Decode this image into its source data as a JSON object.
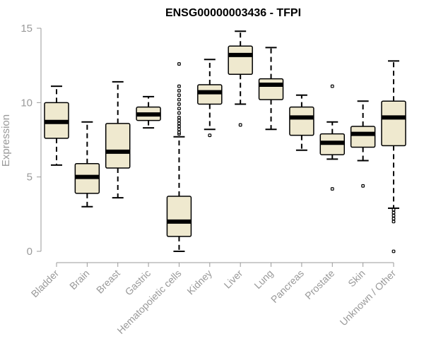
{
  "chart_data": {
    "type": "boxplot",
    "title": "ENSG00000003436 - TFPI",
    "xlabel": "",
    "ylabel": "Expression",
    "ylim": [
      0,
      15
    ],
    "yticks": [
      "0",
      "5",
      "10",
      "15"
    ],
    "grid": false,
    "colors": {
      "box_fill": "#efe9cf",
      "stroke": "#000000",
      "axis": "#999999"
    },
    "categories": [
      "Bladder",
      "Brain",
      "Breast",
      "Gastric",
      "Hematopoietic cells",
      "Kidney",
      "Liver",
      "Lung",
      "Pancreas",
      "Prostate",
      "Skin",
      "Unknown / Other"
    ],
    "boxes": [
      {
        "label": "Bladder",
        "whisker_low": 5.8,
        "q1": 7.6,
        "median": 8.7,
        "q3": 10.0,
        "whisker_high": 11.1,
        "outliers": []
      },
      {
        "label": "Brain",
        "whisker_low": 3.0,
        "q1": 3.9,
        "median": 5.0,
        "q3": 5.9,
        "whisker_high": 8.7,
        "outliers": []
      },
      {
        "label": "Breast",
        "whisker_low": 3.6,
        "q1": 5.6,
        "median": 6.7,
        "q3": 8.6,
        "whisker_high": 11.4,
        "outliers": []
      },
      {
        "label": "Gastric",
        "whisker_low": 8.3,
        "q1": 8.8,
        "median": 9.2,
        "q3": 9.7,
        "whisker_high": 10.4,
        "outliers": []
      },
      {
        "label": "Hematopoietic cells",
        "whisker_low": 0.0,
        "q1": 1.0,
        "median": 2.0,
        "q3": 3.7,
        "whisker_high": 7.7,
        "outliers": [
          7.9,
          8.0,
          8.2,
          8.4,
          8.6,
          8.8,
          9.0,
          9.3,
          9.6,
          9.9,
          10.2,
          10.5,
          10.8,
          11.1,
          12.6
        ]
      },
      {
        "label": "Kidney",
        "whisker_low": 8.2,
        "q1": 9.9,
        "median": 10.7,
        "q3": 11.2,
        "whisker_high": 12.9,
        "outliers": [
          7.8
        ]
      },
      {
        "label": "Liver",
        "whisker_low": 9.9,
        "q1": 11.9,
        "median": 13.2,
        "q3": 13.8,
        "whisker_high": 14.8,
        "outliers": [
          8.5
        ]
      },
      {
        "label": "Lung",
        "whisker_low": 8.2,
        "q1": 10.2,
        "median": 11.2,
        "q3": 11.6,
        "whisker_high": 13.7,
        "outliers": []
      },
      {
        "label": "Pancreas",
        "whisker_low": 6.8,
        "q1": 7.8,
        "median": 9.0,
        "q3": 9.7,
        "whisker_high": 10.5,
        "outliers": []
      },
      {
        "label": "Prostate",
        "whisker_low": 6.2,
        "q1": 6.5,
        "median": 7.3,
        "q3": 7.9,
        "whisker_high": 8.7,
        "outliers": [
          4.2,
          11.1
        ]
      },
      {
        "label": "Skin",
        "whisker_low": 6.1,
        "q1": 7.0,
        "median": 7.9,
        "q3": 8.4,
        "whisker_high": 10.1,
        "outliers": [
          4.4
        ]
      },
      {
        "label": "Unknown / Other",
        "whisker_low": 2.9,
        "q1": 7.1,
        "median": 9.0,
        "q3": 10.1,
        "whisker_high": 12.8,
        "outliers": [
          0.0,
          2.0,
          2.2,
          2.4,
          2.6,
          2.8
        ]
      }
    ]
  }
}
